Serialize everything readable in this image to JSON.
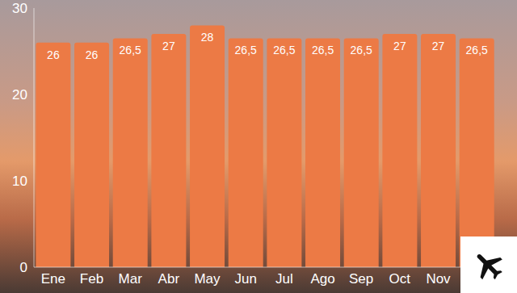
{
  "chart_data": {
    "type": "bar",
    "categories": [
      "Ene",
      "Feb",
      "Mar",
      "Abr",
      "May",
      "Jun",
      "Jul",
      "Ago",
      "Sep",
      "Oct",
      "Nov",
      null
    ],
    "values": [
      26,
      26,
      26.5,
      27,
      28,
      26.5,
      26.5,
      26.5,
      26.5,
      27,
      27,
      26.5
    ],
    "value_labels": [
      "26",
      "26",
      "26,5",
      "27",
      "28",
      "26,5",
      "26,5",
      "26,5",
      "26,5",
      "27",
      "27",
      "26,5"
    ],
    "color": "#ec7a45",
    "ylim": [
      0,
      30
    ],
    "yticks": [
      0,
      10,
      20,
      30
    ],
    "data_labels": true
  }
}
